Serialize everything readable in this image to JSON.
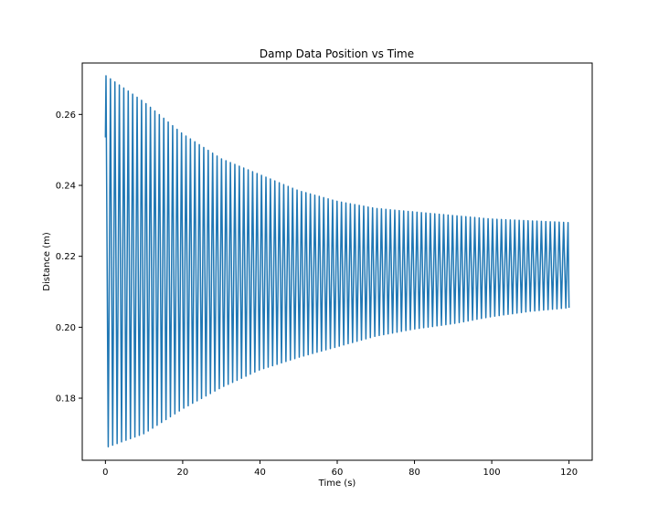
{
  "chart_data": {
    "type": "line",
    "title": "Damp Data Position vs Time",
    "xlabel": "Time (s)",
    "ylabel": "Distance (m)",
    "xlim": [
      -6,
      126
    ],
    "ylim": [
      0.1625,
      0.2745
    ],
    "xticks": [
      0,
      20,
      40,
      60,
      80,
      100,
      120
    ],
    "yticks": [
      0.18,
      0.2,
      0.22,
      0.24,
      0.26
    ],
    "xtick_labels": [
      "0",
      "20",
      "40",
      "60",
      "80",
      "100",
      "120"
    ],
    "ytick_labels": [
      "0.18",
      "0.20",
      "0.22",
      "0.24",
      "0.26"
    ],
    "grid": false,
    "series": [
      {
        "color": "#1f77b4",
        "description_of_envelope": null,
        "upper_envelope": {
          "t": [
            0,
            10,
            20,
            30,
            40,
            50,
            60,
            70,
            80,
            90,
            100,
            110,
            120
          ],
          "x": [
            0.271,
            0.2635,
            0.2545,
            0.2475,
            0.243,
            0.2385,
            0.2355,
            0.2335,
            0.2325,
            0.2315,
            0.2305,
            0.23,
            0.2295
          ]
        },
        "lower_envelope": {
          "t": [
            0,
            10,
            20,
            30,
            40,
            50,
            60,
            70,
            80,
            90,
            100,
            110,
            120
          ],
          "x": [
            0.166,
            0.17,
            0.177,
            0.183,
            0.188,
            0.1915,
            0.1945,
            0.1975,
            0.1995,
            0.201,
            0.203,
            0.2045,
            0.2055
          ]
        },
        "equilibrium": 0.2175,
        "period_s": 1.15,
        "t_start": 0,
        "t_end": 120,
        "x_start": 0.2535,
        "x_end": 0.2055
      }
    ],
    "colors": {
      "line": "#1f77b4",
      "axes": "#000000",
      "background": "#ffffff"
    }
  }
}
